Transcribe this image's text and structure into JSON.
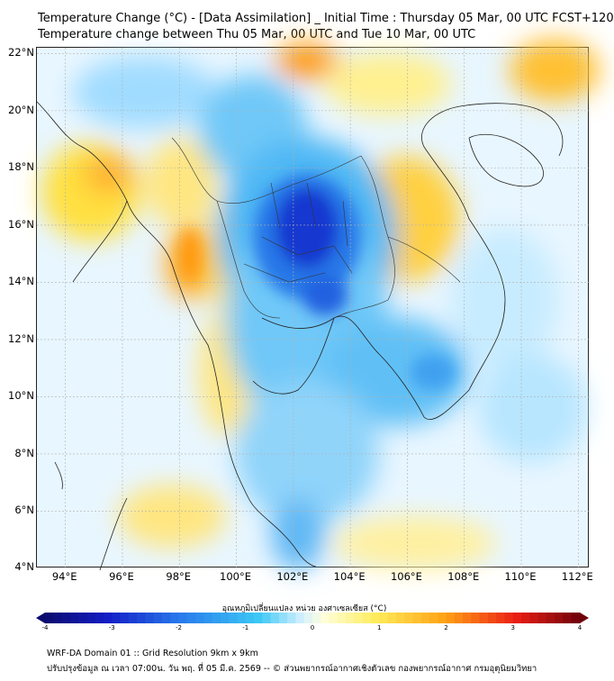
{
  "header": {
    "title": "Temperature Change (°C) - [Data Assimilation] _ Initial Time : Thursday 05 Mar, 00 UTC FCST+120",
    "subtitle": "Temperature change between Thu 05 Mar, 00 UTC and Tue 10 Mar, 00 UTC"
  },
  "map": {
    "lat_labels": [
      "22°N",
      "20°N",
      "18°N",
      "16°N",
      "14°N",
      "12°N",
      "10°N",
      "8°N",
      "6°N",
      "4°N"
    ],
    "lat_values": [
      22,
      20,
      18,
      16,
      14,
      12,
      10,
      8,
      6,
      4
    ],
    "lon_labels": [
      "94°E",
      "96°E",
      "98°E",
      "100°E",
      "102°E",
      "104°E",
      "106°E",
      "108°E",
      "110°E",
      "112°E"
    ],
    "lon_values": [
      94,
      96,
      98,
      100,
      102,
      104,
      106,
      108,
      110,
      112
    ],
    "lat_range": [
      4,
      22.2
    ],
    "lon_range": [
      93,
      112.4
    ],
    "colors": {
      "cold_strong": "#1020d0",
      "cold": "#30a8f0",
      "neutral": "#e8f6ff",
      "warm": "#ffe040",
      "warm_strong": "#ff8c00"
    }
  },
  "colorbar": {
    "label": "อุณหภูมิเปลี่ยนแปลง หน่วย องศาเซลเซียส (°C)",
    "ticks": [
      "-4",
      "-3",
      "-2",
      "-1",
      "0",
      "1",
      "2",
      "3",
      "4"
    ],
    "tick_values": [
      -4,
      -3,
      -2,
      -1,
      0,
      1,
      2,
      3,
      4
    ],
    "min": -4,
    "max": 4
  },
  "footer": {
    "line1": "WRF-DA Domain 01 :: Grid Resolution 9km x 9km",
    "line2": "ปรับปรุงข้อมูล ณ เวลา 07:00น. วัน พฤ. ที่ 05 มี.ค. 2569 -- © ส่วนพยากรณ์อากาศเชิงตัวเลข กองพยากรณ์อากาศ กรมอุตุนิยมวิทยา"
  }
}
